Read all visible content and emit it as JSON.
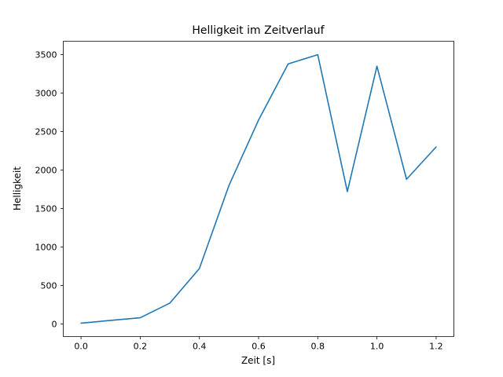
{
  "figure": {
    "background": "#ffffff"
  },
  "chart_data": {
    "type": "line",
    "title": "Helligkeit im Zeitverlauf",
    "xlabel": "Zeit [s]",
    "ylabel": "Helligkeit",
    "x": [
      0.0,
      0.1,
      0.2,
      0.3,
      0.4,
      0.5,
      0.6,
      0.7,
      0.8,
      0.9,
      1.0,
      1.1,
      1.2
    ],
    "y": [
      10,
      45,
      80,
      270,
      720,
      1800,
      2650,
      3380,
      3500,
      1720,
      3350,
      1880,
      2300
    ],
    "xticks": [
      0.0,
      0.2,
      0.4,
      0.6,
      0.8,
      1.0,
      1.2
    ],
    "yticks": [
      0,
      500,
      1000,
      1500,
      2000,
      2500,
      3000,
      3500
    ],
    "xlim": [
      -0.06,
      1.26
    ],
    "ylim": [
      -164.5,
      3674.5
    ],
    "line_color": "#1f77b4",
    "line_width": 1.6,
    "spine_color": "#000000",
    "grid": false,
    "legend": null
  }
}
